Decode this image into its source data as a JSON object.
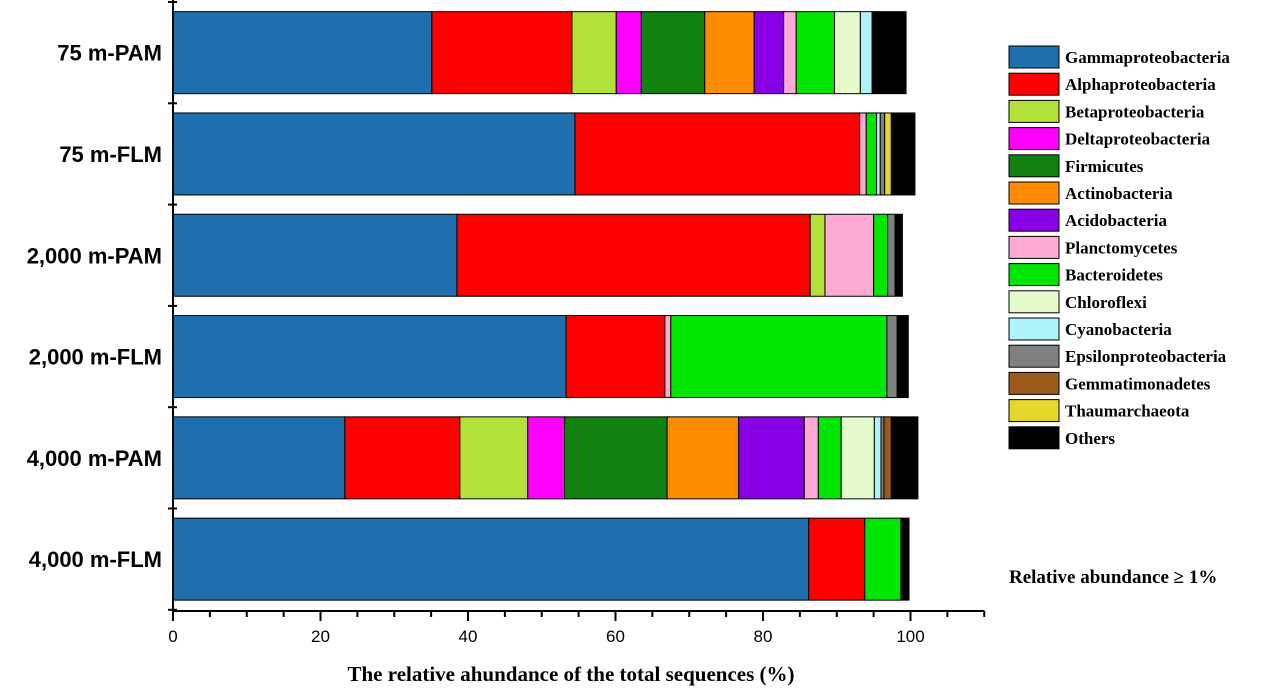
{
  "chart_data": {
    "type": "bar",
    "orientation": "horizontal",
    "stacked": true,
    "title": "",
    "xlabel": "The relative ahundance of the total sequences (%)",
    "ylabel": "",
    "xlim": [
      0,
      110
    ],
    "xticks": [
      0,
      20,
      40,
      60,
      80,
      100
    ],
    "grid": false,
    "legend_position": "right",
    "note": "Relative abundance ≥ 1%",
    "categories": [
      "75 m-PAM",
      "75 m-FLM",
      "2,000 m-PAM",
      "2,000 m-FLM",
      "4,000 m-PAM",
      "4,000 m-FLM"
    ],
    "series": [
      {
        "name": "Gammaproteobacteria",
        "color": "#1f6fae",
        "values": [
          35.1,
          54.5,
          38.5,
          53.3,
          23.3,
          86.2
        ]
      },
      {
        "name": "Alphaproteobacteria",
        "color": "#ff0000",
        "values": [
          19.0,
          38.6,
          47.9,
          13.4,
          15.6,
          7.6
        ]
      },
      {
        "name": "Betaproteobacteria",
        "color": "#b2e23a",
        "values": [
          6.0,
          0,
          2.0,
          0,
          9.2,
          0
        ]
      },
      {
        "name": "Deltaproteobacteria",
        "color": "#ff00ff",
        "values": [
          3.4,
          0,
          0,
          0,
          5.0,
          0
        ]
      },
      {
        "name": "Firmicutes",
        "color": "#118211",
        "values": [
          8.6,
          0,
          0,
          0,
          13.9,
          0
        ]
      },
      {
        "name": "Actinobacteria",
        "color": "#ff8c00",
        "values": [
          6.7,
          0,
          0,
          0,
          9.7,
          0
        ]
      },
      {
        "name": "Acidobacteria",
        "color": "#8a00e6",
        "values": [
          4.0,
          0,
          0,
          0,
          8.9,
          0
        ]
      },
      {
        "name": "Planctomycetes",
        "color": "#ffaad4",
        "values": [
          1.7,
          0.9,
          6.6,
          0.8,
          1.9,
          0
        ]
      },
      {
        "name": "Bacteroidetes",
        "color": "#00e600",
        "values": [
          5.2,
          1.4,
          1.9,
          29.3,
          3.1,
          4.9
        ]
      },
      {
        "name": "Chloroflexi",
        "color": "#e5fbcb",
        "values": [
          3.5,
          0,
          0,
          0,
          4.5,
          0
        ]
      },
      {
        "name": "Cyanobacteria",
        "color": "#aef2fa",
        "values": [
          1.6,
          0.5,
          0,
          0,
          0.9,
          0
        ]
      },
      {
        "name": "Epsilonproteobacteria",
        "color": "#808080",
        "values": [
          0,
          0.6,
          1.0,
          1.4,
          0.4,
          0
        ]
      },
      {
        "name": "Gemmatimonadetes",
        "color": "#9c5a1b",
        "values": [
          0,
          0,
          0,
          0,
          1.0,
          0
        ]
      },
      {
        "name": "Thaumarchaeota",
        "color": "#e6d52b",
        "values": [
          0,
          0.9,
          0,
          0,
          0,
          0
        ]
      },
      {
        "name": "Others",
        "color": "#000000",
        "values": [
          4.6,
          3.2,
          1.0,
          1.5,
          3.6,
          1.1
        ]
      }
    ]
  }
}
